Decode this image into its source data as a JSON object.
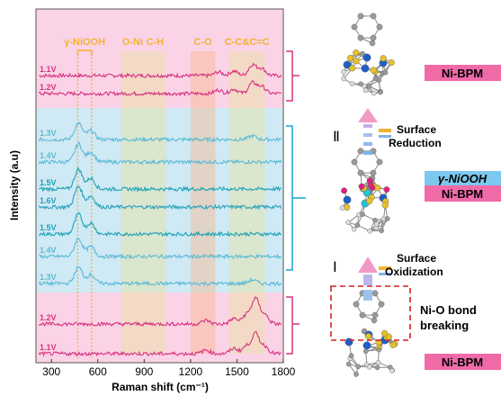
{
  "chart_data": {
    "type": "line",
    "title": "",
    "xlabel": "Raman shift (cm⁻¹)",
    "ylabel": "Intensity (a.u)",
    "xlim": [
      200,
      1800
    ],
    "xticks": [
      300,
      600,
      900,
      1200,
      1500,
      1800
    ],
    "grid": false,
    "series": [
      {
        "name": "1.1V",
        "color": "#d6337f",
        "group": "Ni-BPM",
        "peaks": [
          [
            1380,
            4
          ],
          [
            1480,
            5
          ],
          [
            1600,
            12
          ],
          [
            1660,
            8
          ]
        ]
      },
      {
        "name": "1.2V",
        "color": "#d6337f",
        "group": "Ni-BPM",
        "peaks": [
          [
            1380,
            4
          ],
          [
            1480,
            5
          ],
          [
            1600,
            12
          ],
          [
            1660,
            8
          ]
        ]
      },
      {
        "name": "1.3V",
        "color": "#5bbad5",
        "group": "γ-NiOOH",
        "peaks": [
          [
            475,
            18
          ],
          [
            555,
            10
          ],
          [
            1600,
            4
          ]
        ]
      },
      {
        "name": "1.4V",
        "color": "#5bbad5",
        "group": "γ-NiOOH",
        "peaks": [
          [
            475,
            20
          ],
          [
            555,
            11
          ]
        ]
      },
      {
        "name": "1.5V",
        "color": "#1aa3b5",
        "group": "γ-NiOOH",
        "peaks": [
          [
            475,
            22
          ],
          [
            555,
            12
          ]
        ]
      },
      {
        "name": "1.6V",
        "color": "#2aa0b8",
        "group": "γ-NiOOH",
        "peaks": [
          [
            475,
            23
          ],
          [
            555,
            12
          ]
        ]
      },
      {
        "name": "1.5V",
        "color": "#1aa3b5",
        "group": "γ-NiOOH",
        "peaks": [
          [
            475,
            22
          ],
          [
            555,
            12
          ]
        ]
      },
      {
        "name": "1.4V",
        "color": "#5bbad5",
        "group": "γ-NiOOH",
        "peaks": [
          [
            475,
            20
          ],
          [
            555,
            11
          ]
        ]
      },
      {
        "name": "1.3V",
        "color": "#5bbad5",
        "group": "γ-NiOOH",
        "peaks": [
          [
            475,
            18
          ],
          [
            555,
            10
          ],
          [
            1600,
            4
          ]
        ]
      },
      {
        "name": "1.2V",
        "color": "#d6337f",
        "group": "Ni-BPM",
        "peaks": [
          [
            1300,
            4
          ],
          [
            1480,
            6
          ],
          [
            1560,
            10
          ],
          [
            1620,
            28
          ],
          [
            1680,
            10
          ]
        ]
      },
      {
        "name": "1.1V",
        "color": "#d6337f",
        "group": "Ni-BPM",
        "peaks": [
          [
            1300,
            4
          ],
          [
            1480,
            6
          ],
          [
            1560,
            8
          ],
          [
            1620,
            22
          ],
          [
            1680,
            8
          ]
        ]
      }
    ],
    "regions": [
      {
        "label": "γ-NiOOH",
        "x": [
          470,
          560
        ],
        "color": "#f2b233"
      },
      {
        "label": "O-Ni",
        "x": [
          750,
          900
        ],
        "color": "#e8e3a0"
      },
      {
        "label": "C-H",
        "x": [
          900,
          1040
        ],
        "color": "#e8e3a0"
      },
      {
        "label": "C-O",
        "x": [
          1200,
          1360
        ],
        "color": "#f6b98f"
      },
      {
        "label": "C-C&C=C",
        "x": [
          1450,
          1680
        ],
        "color": "#e8e3a0"
      }
    ]
  },
  "diagram": {
    "steps": [
      {
        "numeral": "Ⅱ",
        "line1": "Surface",
        "line2": "Reduction"
      },
      {
        "numeral": "Ⅰ",
        "line1": "Surface",
        "line2": "Oxidization"
      }
    ],
    "badges": [
      "Ni-BPM",
      "γ-NiOOH",
      "Ni-BPM",
      "Ni-BPM"
    ],
    "bond_note_line1": "Ni-O bond",
    "bond_note_line2": "breaking",
    "atom_colors": {
      "nickel": "#1f5fc4",
      "sulfur": "#e8c12a",
      "carbon": "#9a9a9a",
      "hydrogen": "#dcdcdc",
      "oxygen": "#e0207f",
      "nickel_oxidized": "#22c3d6"
    }
  }
}
